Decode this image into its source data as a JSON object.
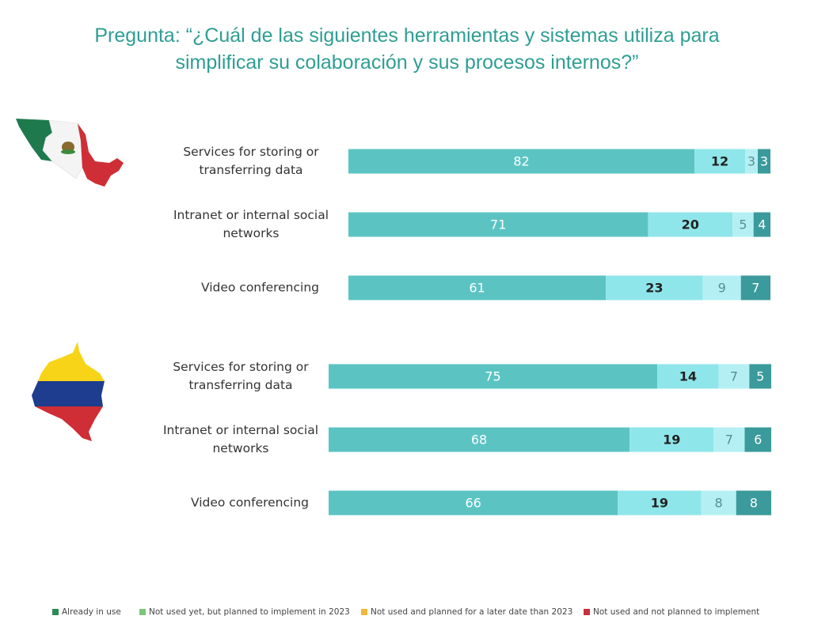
{
  "title": {
    "line1": "Pregunta: “¿Cuál de las siguientes herramientas y sistemas utiliza para",
    "line2": "simplificar su colaboración y sus procesos internos?”"
  },
  "legend": [
    {
      "label": "Already in use",
      "color": "#2e8b57"
    },
    {
      "label": "Not used yet, but planned to implement in 2023",
      "color": "#7dc57a"
    },
    {
      "label": "Not used and planned for a later date than 2023",
      "color": "#f0b93a"
    },
    {
      "label": "Not used and not planned to implement",
      "color": "#c8323a"
    }
  ],
  "flags": [
    {
      "icon": "mexico-flag-map-icon"
    },
    {
      "icon": "colombia-flag-map-icon"
    }
  ],
  "chart_data": [
    {
      "type": "bar",
      "orientation": "horizontal",
      "stacked": true,
      "group": "Mexico (flag)",
      "categories": [
        [
          "Services for storing or",
          "transferring data"
        ],
        [
          "Intranet or internal social",
          "networks"
        ],
        [
          "Video conferencing"
        ]
      ],
      "series": [
        {
          "name": "Already in use",
          "values": [
            82,
            71,
            61
          ],
          "color": "#5bc4c3",
          "label_color": "#ffffff",
          "label_weight": "normal"
        },
        {
          "name": "Not used yet, but planned to implement in 2023",
          "values": [
            12,
            20,
            23
          ],
          "color": "#8fe6ea",
          "label_color": "#222222",
          "label_weight": "bold"
        },
        {
          "name": "Not used and planned for a later date than 2023",
          "values": [
            3,
            5,
            9
          ],
          "color": "#b4f0f3",
          "label_color": "#5a8d92",
          "label_weight": "normal"
        },
        {
          "name": "Not used and not planned to implement",
          "values": [
            3,
            4,
            7
          ],
          "color": "#3b9a9b",
          "label_color": "#ffffff",
          "label_weight": "normal"
        }
      ]
    },
    {
      "type": "bar",
      "orientation": "horizontal",
      "stacked": true,
      "group": "Colombia (flag)",
      "categories": [
        [
          "Services for storing or",
          "transferring data"
        ],
        [
          "Intranet or internal social",
          "networks"
        ],
        [
          "Video conferencing"
        ]
      ],
      "series": [
        {
          "name": "Already in use",
          "values": [
            75,
            68,
            66
          ],
          "color": "#5bc4c3",
          "label_color": "#ffffff",
          "label_weight": "normal"
        },
        {
          "name": "Not used yet, but planned to implement in 2023",
          "values": [
            14,
            19,
            19
          ],
          "color": "#8fe6ea",
          "label_color": "#222222",
          "label_weight": "bold"
        },
        {
          "name": "Not used and planned for a later date than 2023",
          "values": [
            7,
            7,
            8
          ],
          "color": "#b4f0f3",
          "label_color": "#5a8d92",
          "label_weight": "normal"
        },
        {
          "name": "Not used and not planned to implement",
          "values": [
            5,
            6,
            8
          ],
          "color": "#3b9a9b",
          "label_color": "#ffffff",
          "label_weight": "normal"
        }
      ]
    }
  ]
}
